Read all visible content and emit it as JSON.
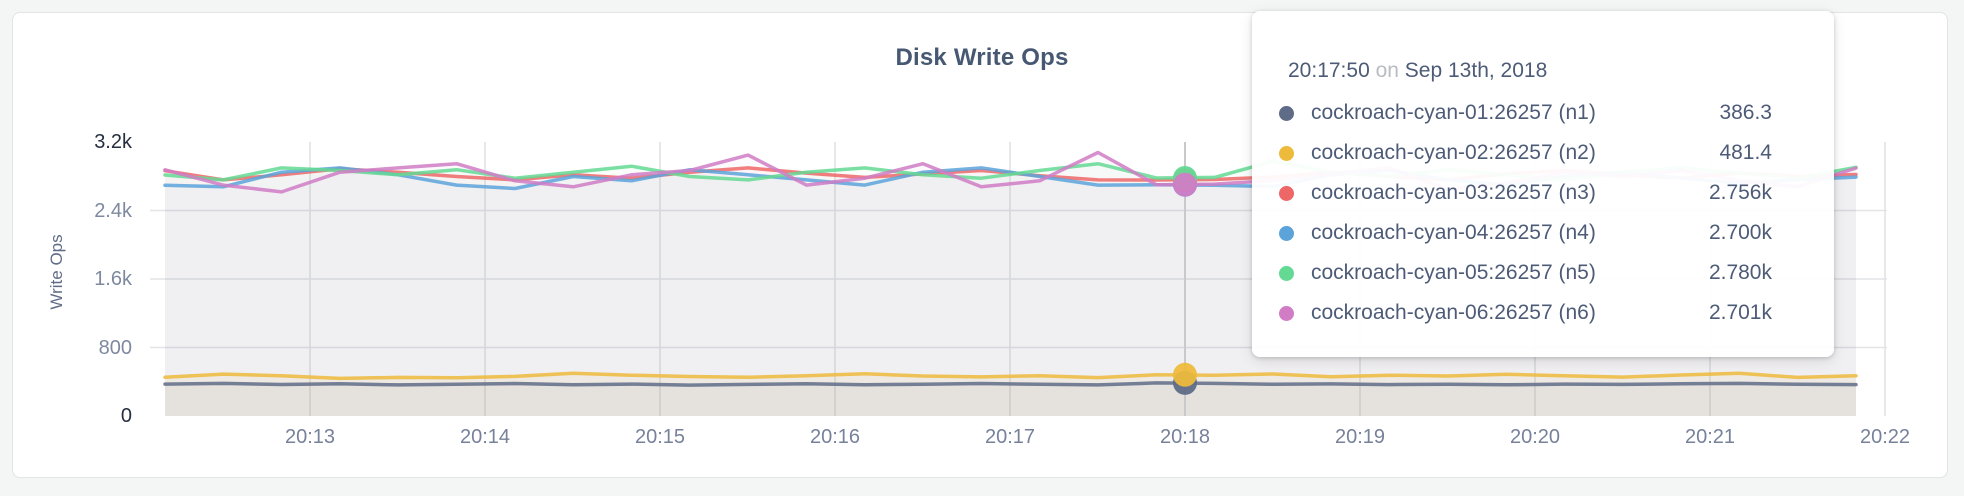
{
  "panel": {
    "title": "Disk Write Ops"
  },
  "y_axis": {
    "label": "Write Ops",
    "ticks": [
      {
        "label": "3.2k",
        "value": 3200
      },
      {
        "label": "2.4k",
        "value": 2400
      },
      {
        "label": "1.6k",
        "value": 1600
      },
      {
        "label": "800",
        "value": 800
      },
      {
        "label": "0",
        "value": 0
      }
    ]
  },
  "x_axis": {
    "ticks": [
      "20:13",
      "20:14",
      "20:15",
      "20:16",
      "20:17",
      "20:18",
      "20:19",
      "20:20",
      "20:21",
      "20:22"
    ]
  },
  "tooltip": {
    "time": "20:17:50",
    "connector": "on",
    "date": "Sep 13th, 2018",
    "rows": [
      {
        "name": "cockroach-cyan-01:26257 (n1)",
        "value": "386.3",
        "value_num": 386.3
      },
      {
        "name": "cockroach-cyan-02:26257 (n2)",
        "value": "481.4",
        "value_num": 481.4
      },
      {
        "name": "cockroach-cyan-03:26257 (n3)",
        "value": "2.756k",
        "value_num": 2756
      },
      {
        "name": "cockroach-cyan-04:26257 (n4)",
        "value": "2.700k",
        "value_num": 2700
      },
      {
        "name": "cockroach-cyan-05:26257 (n5)",
        "value": "2.780k",
        "value_num": 2780
      },
      {
        "name": "cockroach-cyan-06:26257 (n6)",
        "value": "2.701k",
        "value_num": 2701
      }
    ]
  },
  "chart_data": {
    "type": "line",
    "title": "Disk Write Ops",
    "ylabel": "Write Ops",
    "xlabel": "",
    "ylim": [
      0,
      3200
    ],
    "grid": true,
    "legend_position": "tooltip-only",
    "x": [
      "20:12:10",
      "20:12:30",
      "20:12:50",
      "20:13:10",
      "20:13:30",
      "20:13:50",
      "20:14:10",
      "20:14:30",
      "20:14:50",
      "20:15:10",
      "20:15:30",
      "20:15:50",
      "20:16:10",
      "20:16:30",
      "20:16:50",
      "20:17:10",
      "20:17:30",
      "20:17:50",
      "20:18:10",
      "20:18:30",
      "20:18:50",
      "20:19:10",
      "20:19:30",
      "20:19:50",
      "20:20:10",
      "20:20:30",
      "20:20:50",
      "20:21:10",
      "20:21:30",
      "20:21:50"
    ],
    "series": [
      {
        "name": "cockroach-cyan-01:26257 (n1)",
        "color": "#5F6C87",
        "fill_alpha": 0.06,
        "values": [
          372,
          381,
          368,
          376,
          363,
          371,
          379,
          366,
          373,
          361,
          369,
          376,
          365,
          371,
          379,
          370,
          363,
          386.3,
          381,
          370,
          375,
          367,
          371,
          364,
          373,
          369,
          376,
          381,
          370,
          367
        ]
      },
      {
        "name": "cockroach-cyan-02:26257 (n2)",
        "color": "#EDBA3C",
        "fill_alpha": 0.09,
        "values": [
          452,
          489,
          469,
          439,
          451,
          447,
          463,
          499,
          477,
          461,
          453,
          469,
          493,
          467,
          457,
          471,
          449,
          481.4,
          477,
          491,
          459,
          477,
          467,
          487,
          471,
          454,
          479,
          499,
          451,
          469
        ]
      },
      {
        "name": "cockroach-cyan-03:26257 (n3)",
        "color": "#EE6767",
        "fill_alpha": 0.04,
        "values": [
          2865,
          2757,
          2817,
          2887,
          2847,
          2797,
          2757,
          2817,
          2777,
          2847,
          2897,
          2837,
          2787,
          2827,
          2867,
          2807,
          2757,
          2756,
          2762,
          2790,
          2848,
          2798,
          2758,
          2828,
          2868,
          2818,
          2778,
          2838,
          2798,
          2820
        ]
      },
      {
        "name": "cockroach-cyan-04:26257 (n4)",
        "color": "#5CA3DA",
        "fill_alpha": 0.04,
        "values": [
          2695,
          2677,
          2847,
          2897,
          2817,
          2697,
          2657,
          2797,
          2747,
          2877,
          2817,
          2757,
          2697,
          2847,
          2897,
          2797,
          2697,
          2700,
          2694,
          2680,
          2818,
          2868,
          2758,
          2698,
          2798,
          2848,
          2778,
          2718,
          2758,
          2790
        ]
      },
      {
        "name": "cockroach-cyan-05:26257 (n5)",
        "color": "#64D993",
        "fill_alpha": 0.04,
        "values": [
          2815,
          2757,
          2897,
          2867,
          2817,
          2877,
          2777,
          2847,
          2917,
          2797,
          2757,
          2847,
          2897,
          2817,
          2777,
          2867,
          2947,
          2780,
          2786,
          2975,
          2848,
          2800,
          2878,
          2818,
          2758,
          2848,
          2898,
          2838,
          2778,
          2905
        ]
      },
      {
        "name": "cockroach-cyan-06:26257 (n6)",
        "color": "#D07DC5",
        "fill_alpha": 0.04,
        "values": [
          2875,
          2697,
          2617,
          2847,
          2897,
          2947,
          2747,
          2677,
          2817,
          2867,
          3047,
          2697,
          2777,
          2947,
          2677,
          2747,
          3077,
          2701,
          2708,
          2750,
          2830,
          2898,
          2648,
          2718,
          2848,
          2798,
          2868,
          2748,
          2678,
          2895
        ]
      }
    ],
    "hover": {
      "time": "20:17:50",
      "tick_label": "20:18",
      "values": [
        386.3,
        481.4,
        2756,
        2700,
        2780,
        2701
      ]
    }
  }
}
